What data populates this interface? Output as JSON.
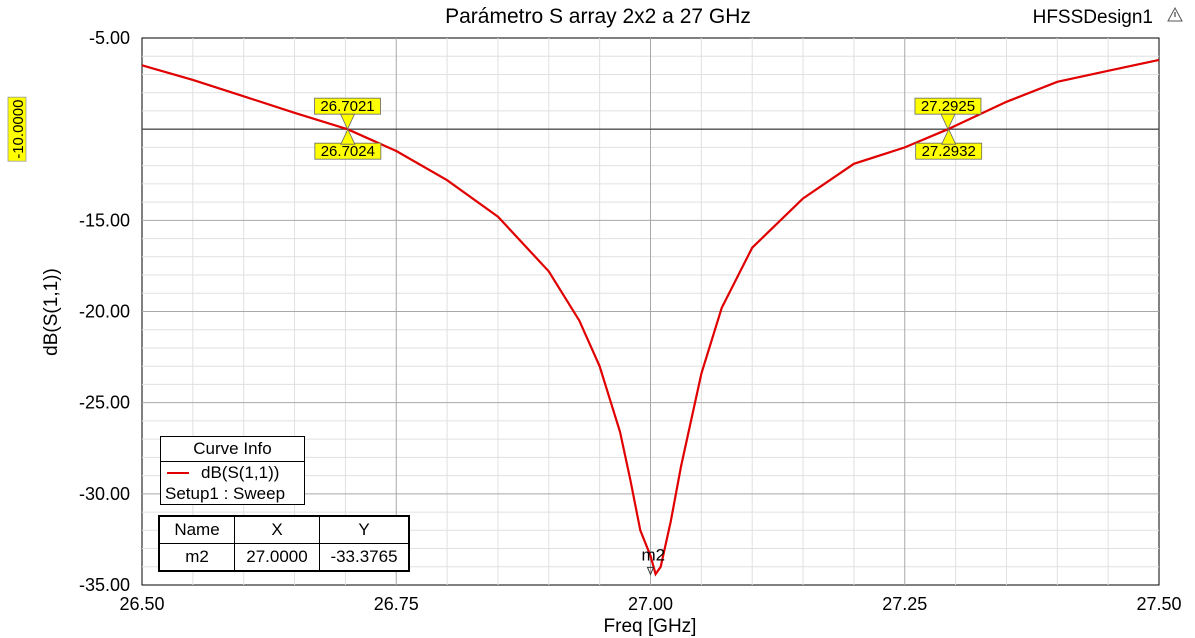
{
  "app": {
    "design_name": "HFSSDesign1"
  },
  "chart_data": {
    "type": "line",
    "title": "Parámetro S array 2x2 a 27 GHz",
    "xlabel": "Freq [GHz]",
    "ylabel": "dB(S(1,1))",
    "xlim": [
      26.5,
      27.5
    ],
    "ylim": [
      -35,
      -5
    ],
    "xticks": [
      "26.50",
      "26.75",
      "27.00",
      "27.25",
      "27.50"
    ],
    "yticks": [
      "-5.00",
      "-10.00",
      "-15.00",
      "-20.00",
      "-25.00",
      "-30.00",
      "-35.00"
    ],
    "grid": true,
    "series": [
      {
        "name": "dB(S(1,1))",
        "color": "#e00000",
        "x": [
          26.5,
          26.55,
          26.6,
          26.65,
          26.7021,
          26.75,
          26.8,
          26.85,
          26.9,
          26.93,
          26.95,
          26.97,
          26.98,
          26.99,
          27.0,
          27.005,
          27.01,
          27.02,
          27.03,
          27.05,
          27.07,
          27.1,
          27.15,
          27.2,
          27.25,
          27.2925,
          27.35,
          27.4,
          27.45,
          27.5
        ],
        "y": [
          -6.5,
          -7.3,
          -8.2,
          -9.1,
          -10.0,
          -11.2,
          -12.8,
          -14.8,
          -17.8,
          -20.5,
          -23.0,
          -26.6,
          -29.2,
          -32.0,
          -33.4,
          -34.4,
          -34.0,
          -31.5,
          -28.5,
          -23.4,
          -19.8,
          -16.5,
          -13.8,
          -11.9,
          -11.0,
          -10.0,
          -8.5,
          -7.4,
          -6.8,
          -6.2
        ]
      }
    ],
    "reference_line": {
      "y": -10.0,
      "label": "-10.0000"
    },
    "markers": [
      {
        "label": "26.7021",
        "x": 26.7021,
        "y": -10.0,
        "side": "above"
      },
      {
        "label": "26.7024",
        "x": 26.7024,
        "y": -10.0,
        "side": "below"
      },
      {
        "label": "27.2925",
        "x": 27.2925,
        "y": -10.0,
        "side": "above"
      },
      {
        "label": "27.2932",
        "x": 27.2932,
        "y": -10.0,
        "side": "below"
      },
      {
        "label": "m2",
        "x": 27.0,
        "y": -33.3765,
        "side": "name"
      }
    ]
  },
  "curve_info": {
    "title": "Curve Info",
    "curve": "dB(S(1,1))",
    "setup": "Setup1 : Sweep"
  },
  "marker_table": {
    "headers": [
      "Name",
      "X",
      "Y"
    ],
    "rows": [
      [
        "m2",
        "27.0000",
        "-33.3765"
      ]
    ]
  }
}
